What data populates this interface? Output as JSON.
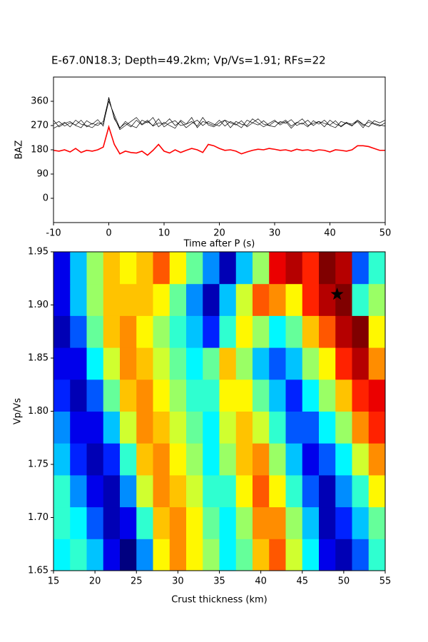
{
  "chart_data": [
    {
      "type": "line",
      "title": "E-67.0N18.3; Depth=49.2km; Vp/Vs=1.91; RFs=22",
      "xlabel": "Time after P (s)",
      "ylabel": "BAZ",
      "xlim": [
        -10,
        50
      ],
      "ylim": [
        -90,
        450
      ],
      "xticks": [
        -10,
        0,
        10,
        20,
        30,
        40,
        50
      ],
      "yticks": [
        0,
        90,
        180,
        270,
        360
      ],
      "x": [
        -10,
        -9,
        -8,
        -7,
        -6,
        -5,
        -4,
        -3,
        -2,
        -1,
        0,
        1,
        2,
        3,
        4,
        5,
        6,
        7,
        8,
        9,
        10,
        11,
        12,
        13,
        14,
        15,
        16,
        17,
        18,
        19,
        20,
        21,
        22,
        23,
        24,
        25,
        26,
        27,
        28,
        29,
        30,
        31,
        32,
        33,
        34,
        35,
        36,
        37,
        38,
        39,
        40,
        41,
        42,
        43,
        44,
        45,
        46,
        47,
        48,
        49,
        50
      ],
      "series": [
        {
          "color": "#000000",
          "values": [
            275,
            285,
            268,
            280,
            272,
            290,
            265,
            278,
            270,
            285,
            370,
            300,
            255,
            270,
            285,
            300,
            275,
            290,
            268,
            280,
            275,
            295,
            270,
            285,
            262,
            278,
            290,
            270,
            285,
            275,
            268,
            290,
            280,
            272,
            288,
            265,
            280,
            295,
            275,
            270,
            285,
            278,
            290,
            268,
            282,
            275,
            290,
            270,
            285,
            278,
            272,
            288,
            265,
            280,
            275,
            290,
            270,
            282,
            275,
            268,
            280
          ]
        },
        {
          "color": "#000000",
          "values": [
            260,
            270,
            282,
            265,
            290,
            275,
            270,
            262,
            280,
            275,
            360,
            310,
            260,
            285,
            270,
            262,
            290,
            280,
            300,
            265,
            282,
            270,
            260,
            290,
            275,
            285,
            268,
            300,
            272,
            265,
            280,
            290,
            262,
            285,
            275,
            270,
            295,
            280,
            265,
            278,
            290,
            272,
            285,
            260,
            280,
            295,
            270,
            278,
            285,
            265,
            290,
            275,
            268,
            282,
            270,
            285,
            262,
            290,
            278,
            272,
            268
          ]
        },
        {
          "color": "#000000",
          "values": [
            290,
            265,
            278,
            285,
            270,
            262,
            288,
            275,
            292,
            268,
            375,
            295,
            262,
            278,
            265,
            290,
            272,
            285,
            270,
            295,
            265,
            280,
            288,
            270,
            275,
            300,
            262,
            285,
            278,
            270,
            290,
            268,
            285,
            275,
            262,
            290,
            280,
            272,
            288,
            270,
            265,
            285,
            278,
            292,
            270,
            280,
            265,
            288,
            275,
            290,
            270,
            262,
            285,
            278,
            268,
            290,
            275,
            265,
            288,
            280,
            290
          ]
        },
        {
          "color": "#ff0000",
          "values": [
            178,
            175,
            180,
            172,
            185,
            170,
            178,
            175,
            180,
            190,
            265,
            200,
            165,
            175,
            170,
            168,
            175,
            160,
            178,
            200,
            175,
            168,
            180,
            170,
            178,
            185,
            180,
            170,
            200,
            195,
            185,
            178,
            180,
            175,
            165,
            172,
            178,
            182,
            180,
            185,
            182,
            178,
            180,
            175,
            182,
            178,
            180,
            175,
            180,
            178,
            172,
            180,
            178,
            175,
            180,
            195,
            195,
            192,
            185,
            178,
            178
          ]
        }
      ]
    },
    {
      "type": "heatmap",
      "xlabel": "Crust thickness (km)",
      "ylabel": "Vp/Vs",
      "xlim": [
        15,
        55
      ],
      "ylim": [
        1.65,
        1.95
      ],
      "xticks": [
        15,
        20,
        25,
        30,
        35,
        40,
        45,
        50,
        55
      ],
      "yticks": [
        1.65,
        {
          "value": 1.7,
          "label": "1.70"
        },
        1.75,
        {
          "value": 1.8,
          "label": "1.80"
        },
        1.85,
        {
          "value": 1.9,
          "label": "1.90"
        },
        1.95
      ],
      "colormap": "jet",
      "x": [
        16,
        18,
        20,
        22,
        24,
        26,
        28,
        30,
        32,
        34,
        36,
        38,
        40,
        42,
        44,
        46,
        48,
        50,
        52,
        54
      ],
      "y": [
        1.665,
        1.695,
        1.725,
        1.755,
        1.785,
        1.815,
        1.845,
        1.875,
        1.905,
        1.935
      ],
      "z": [
        [
          3.5,
          4,
          3,
          1,
          0,
          2.5,
          6,
          7,
          6,
          5,
          3.5,
          4.5,
          6.5,
          7.5,
          5.5,
          3.5,
          1,
          0.5,
          2,
          4
        ],
        [
          4,
          3.5,
          2,
          0.5,
          1,
          4,
          6.5,
          7,
          6,
          4.5,
          3.5,
          5,
          7,
          7,
          5,
          3,
          0.5,
          1.5,
          3,
          4.5
        ],
        [
          4,
          2.5,
          1,
          0.5,
          2.5,
          5.5,
          7,
          6.5,
          5.5,
          4,
          4,
          6,
          7.5,
          6,
          4,
          2,
          0.5,
          2.5,
          4,
          6
        ],
        [
          3,
          1.5,
          0.5,
          1.5,
          4,
          6.5,
          7,
          6,
          5,
          3.5,
          5,
          6.5,
          7,
          5,
          3,
          1,
          2,
          3.5,
          5.5,
          7
        ],
        [
          2.5,
          1,
          1,
          3,
          5.5,
          7,
          6.5,
          5.5,
          4.5,
          3.5,
          5.5,
          6.5,
          5.5,
          4,
          2,
          2,
          3.5,
          5,
          7,
          8
        ],
        [
          1.5,
          0.5,
          2,
          4.5,
          6.5,
          7,
          6,
          5,
          4,
          4,
          6,
          6,
          4.5,
          3,
          1.5,
          3.5,
          5,
          6.5,
          8,
          8.5
        ],
        [
          1,
          1,
          3.5,
          5.5,
          7,
          6.5,
          5.5,
          4.5,
          3.5,
          4.5,
          6.5,
          5,
          3,
          2,
          3,
          5,
          6,
          8,
          9,
          7
        ],
        [
          0.5,
          2,
          4.5,
          6.5,
          7,
          6,
          5,
          4,
          3,
          1.5,
          4,
          6,
          5,
          3.5,
          4.5,
          6.5,
          7.5,
          9,
          9.5,
          6
        ],
        [
          1,
          3,
          5,
          6.5,
          6.5,
          6.5,
          6,
          4.5,
          2.5,
          0.5,
          3,
          5.5,
          7.5,
          7,
          6,
          8,
          9,
          9.5,
          4,
          5
        ],
        [
          1,
          3,
          5,
          6.5,
          6,
          6.5,
          7.5,
          6,
          4.5,
          2.5,
          0.5,
          3,
          5,
          8.5,
          9,
          8,
          9.5,
          9,
          2,
          4
        ]
      ],
      "marker": {
        "x": 49.2,
        "y": 1.91,
        "color": "#000000"
      }
    }
  ]
}
